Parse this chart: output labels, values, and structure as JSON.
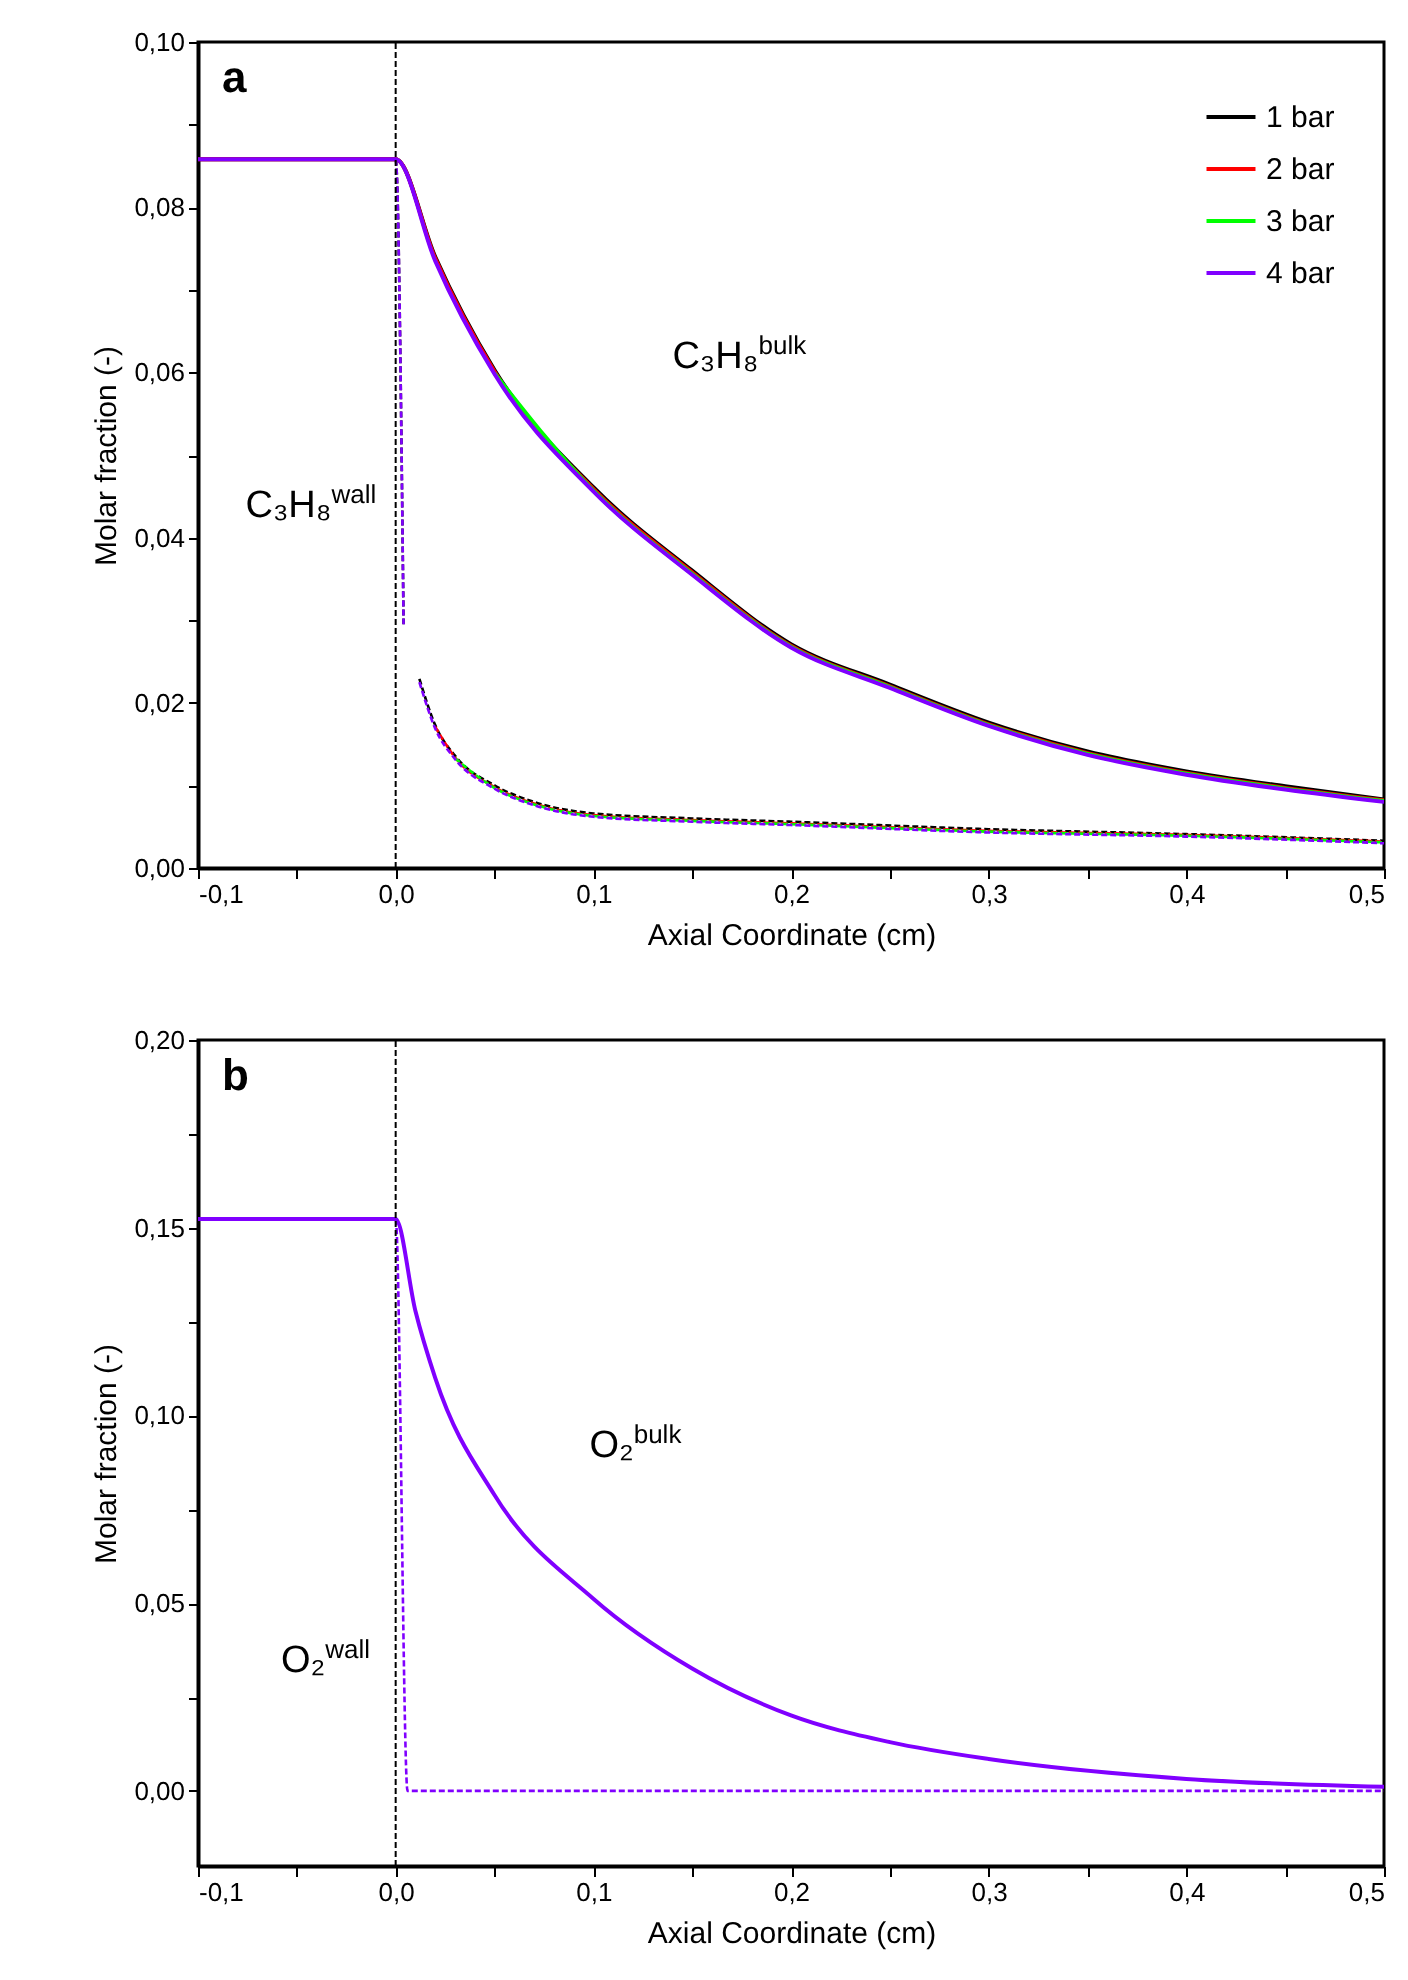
{
  "chart_data": [
    {
      "type": "line",
      "title": "a",
      "xlabel": "Axial Coordinate (cm)",
      "ylabel": "Molar fraction (-)",
      "legend": "top right",
      "grid": false,
      "xlim": [
        -0.1,
        0.5
      ],
      "ylim": [
        0,
        0.1
      ],
      "xticks": [
        {
          "value": -0.1,
          "label": "-0,1"
        },
        {
          "value": -0.05,
          "label": null
        },
        {
          "value": 0,
          "label": "0,0"
        },
        {
          "value": 0.05,
          "label": null
        },
        {
          "value": 0.1,
          "label": "0,1"
        },
        {
          "value": 0.15,
          "label": null
        },
        {
          "value": 0.2,
          "label": "0,2"
        },
        {
          "value": 0.25,
          "label": null
        },
        {
          "value": 0.3,
          "label": "0,3"
        },
        {
          "value": 0.35,
          "label": null
        },
        {
          "value": 0.4,
          "label": "0,4"
        },
        {
          "value": 0.45,
          "label": null
        },
        {
          "value": 0.5,
          "label": "0,5"
        }
      ],
      "yticks": [
        {
          "value": 0,
          "label": "0,00"
        },
        {
          "value": 0.01,
          "label": null
        },
        {
          "value": 0.02,
          "label": "0,02"
        },
        {
          "value": 0.03,
          "label": null
        },
        {
          "value": 0.04,
          "label": "0,04"
        },
        {
          "value": 0.05,
          "label": null
        },
        {
          "value": 0.06,
          "label": "0,06"
        },
        {
          "value": 0.07,
          "label": null
        },
        {
          "value": 0.08,
          "label": "0,08"
        },
        {
          "value": 0.09,
          "label": null
        },
        {
          "value": 0.1,
          "label": "0,10"
        }
      ],
      "ref_lines": [
        {
          "axis": "x",
          "value": 0,
          "color": "#000000",
          "line_style": "dashed"
        }
      ],
      "annotations": [
        "C₃H₈$^{bulk}$",
        "C₃H₈$^{wall}$"
      ],
      "series": [
        {
          "color": "#000000",
          "line_style": "dashed",
          "x": [
            -0.1,
            0,
            0.004,
            0.008,
            0.012,
            0.02,
            0.03,
            0.05,
            0.07,
            0.1,
            0.15,
            0.2,
            0.3,
            0.4,
            0.5
          ],
          "values": [
            0.0858,
            0.0858,
            0.0295,
            null,
            0.0229,
            0.0173,
            0.0136,
            0.01,
            0.008,
            0.0066,
            0.006,
            0.0056,
            0.0047,
            0.0041,
            0.0033
          ]
        },
        {
          "color": "#ff0000",
          "line_style": "dashed",
          "x": [
            0.02,
            0.03,
            0.05,
            0.07,
            0.1,
            0.15,
            0.2,
            0.3,
            0.4,
            0.5
          ],
          "values": [
            0.0171,
            0.0134,
            0.0098,
            0.0078,
            0.0064,
            0.0058,
            0.0054,
            0.0045,
            0.004,
            0.0032
          ]
        },
        {
          "color": "#00ff00",
          "line_style": "dashed",
          "x": [
            0.03,
            0.05,
            0.07,
            0.1,
            0.15,
            0.2,
            0.3,
            0.4,
            0.5
          ],
          "values": [
            0.0133,
            0.0097,
            0.0077,
            0.0063,
            0.0057,
            0.0053,
            0.0044,
            0.0039,
            0.0031
          ]
        },
        {
          "color": "#8000ff",
          "line_style": "dashed",
          "x": [
            -0.1,
            0,
            0.004,
            0.008,
            0.012,
            0.02,
            0.03,
            0.05,
            0.07,
            0.1,
            0.15,
            0.2,
            0.3,
            0.4,
            0.5
          ],
          "values": [
            0.0858,
            0.0858,
            0.0295,
            null,
            0.0225,
            0.0169,
            0.0132,
            0.0096,
            0.0076,
            0.0062,
            0.0056,
            0.0052,
            0.0043,
            0.0038,
            0.003
          ]
        },
        {
          "name": "1 bar",
          "color": "#000000",
          "line_style": "solid",
          "x": [
            -0.1,
            0,
            0.02,
            0.05,
            0.1,
            0.15,
            0.2,
            0.25,
            0.3,
            0.35,
            0.4,
            0.45,
            0.5
          ],
          "values": [
            0.0858,
            0.0858,
            0.074,
            0.0603,
            0.0461,
            0.036,
            0.0271,
            0.0222,
            0.0176,
            0.0141,
            0.0117,
            0.0099,
            0.0083
          ]
        },
        {
          "name": "2 bar",
          "color": "#ff0000",
          "line_style": "solid",
          "x": [
            -0.1,
            0,
            0.02,
            0.05,
            0.1,
            0.15,
            0.2,
            0.25,
            0.3,
            0.35,
            0.4,
            0.45,
            0.5
          ],
          "values": [
            0.0858,
            0.0858,
            0.0738,
            0.0601,
            0.0459,
            0.0358,
            0.0269,
            0.022,
            0.0174,
            0.0139,
            0.0115,
            0.0097,
            0.0082
          ]
        },
        {
          "name": "3 bar",
          "color": "#00ff00",
          "line_style": "solid",
          "x": [
            0.05,
            0.1,
            0.15,
            0.2,
            0.25,
            0.3,
            0.35,
            0.4,
            0.45,
            0.5
          ],
          "values": [
            0.0599,
            0.0457,
            0.0356,
            0.0268,
            0.0219,
            0.0173,
            0.0138,
            0.0114,
            0.0096,
            0.0081
          ]
        },
        {
          "name": "4 bar",
          "color": "#8000ff",
          "line_style": "solid",
          "x": [
            -0.1,
            0,
            0.02,
            0.05,
            0.1,
            0.15,
            0.2,
            0.25,
            0.3,
            0.35,
            0.4,
            0.45,
            0.5
          ],
          "values": [
            0.0858,
            0.0858,
            0.0735,
            0.0598,
            0.0456,
            0.0355,
            0.0267,
            0.0218,
            0.0172,
            0.0137,
            0.0113,
            0.0095,
            0.008
          ]
        }
      ]
    },
    {
      "type": "line",
      "title": "b",
      "xlabel": "Axial Coordinate (cm)",
      "ylabel": "Molar fraction (-)",
      "legend": "top right",
      "grid": false,
      "xlim": [
        -0.1,
        0.5
      ],
      "ylim": [
        -0.02,
        0.2
      ],
      "xticks": [
        {
          "value": -0.1,
          "label": "-0,1"
        },
        {
          "value": -0.05,
          "label": null
        },
        {
          "value": 0,
          "label": "0,0"
        },
        {
          "value": 0.05,
          "label": null
        },
        {
          "value": 0.1,
          "label": "0,1"
        },
        {
          "value": 0.15,
          "label": null
        },
        {
          "value": 0.2,
          "label": "0,2"
        },
        {
          "value": 0.25,
          "label": null
        },
        {
          "value": 0.3,
          "label": "0,3"
        },
        {
          "value": 0.35,
          "label": null
        },
        {
          "value": 0.4,
          "label": "0,4"
        },
        {
          "value": 0.45,
          "label": null
        },
        {
          "value": 0.5,
          "label": "0,5"
        }
      ],
      "yticks": [
        {
          "value": 0,
          "label": "0,00"
        },
        {
          "value": 0.025,
          "label": null
        },
        {
          "value": 0.05,
          "label": "0,05"
        },
        {
          "value": 0.075,
          "label": null
        },
        {
          "value": 0.1,
          "label": "0,10"
        },
        {
          "value": 0.125,
          "label": null
        },
        {
          "value": 0.15,
          "label": "0,15"
        },
        {
          "value": 0.175,
          "label": null
        },
        {
          "value": 0.2,
          "label": "0,20"
        }
      ],
      "ref_lines": [
        {
          "axis": "x",
          "value": 0,
          "color": "#000000",
          "line_style": "dashed"
        }
      ],
      "annotations": [
        "O₂$^{bulk}$",
        "O₂$^{wall}$"
      ],
      "series": [
        {
          "color": "#8000ff",
          "line_style": "dashed",
          "x": [
            -0.1,
            0,
            0.006,
            0.5
          ],
          "values": [
            0.1523,
            0.1523,
            0,
            0
          ]
        },
        {
          "name": "1 bar",
          "color": "#000000",
          "line_style": "solid"
        },
        {
          "name": "2 bar",
          "color": "#ff0000",
          "line_style": "solid"
        },
        {
          "name": "3 bar",
          "color": "#00ff00",
          "line_style": "solid"
        },
        {
          "name": "4 bar",
          "color": "#8000ff",
          "line_style": "solid",
          "x": [
            -0.1,
            0,
            0.01,
            0.02,
            0.05,
            0.1,
            0.15,
            0.2,
            0.25,
            0.3,
            0.4,
            0.5
          ],
          "values": [
            0.1523,
            0.1523,
            0.1278,
            0.11,
            0.0788,
            0.0512,
            0.0326,
            0.0201,
            0.013,
            0.0085,
            0.0032,
            0.0011
          ]
        }
      ]
    }
  ]
}
